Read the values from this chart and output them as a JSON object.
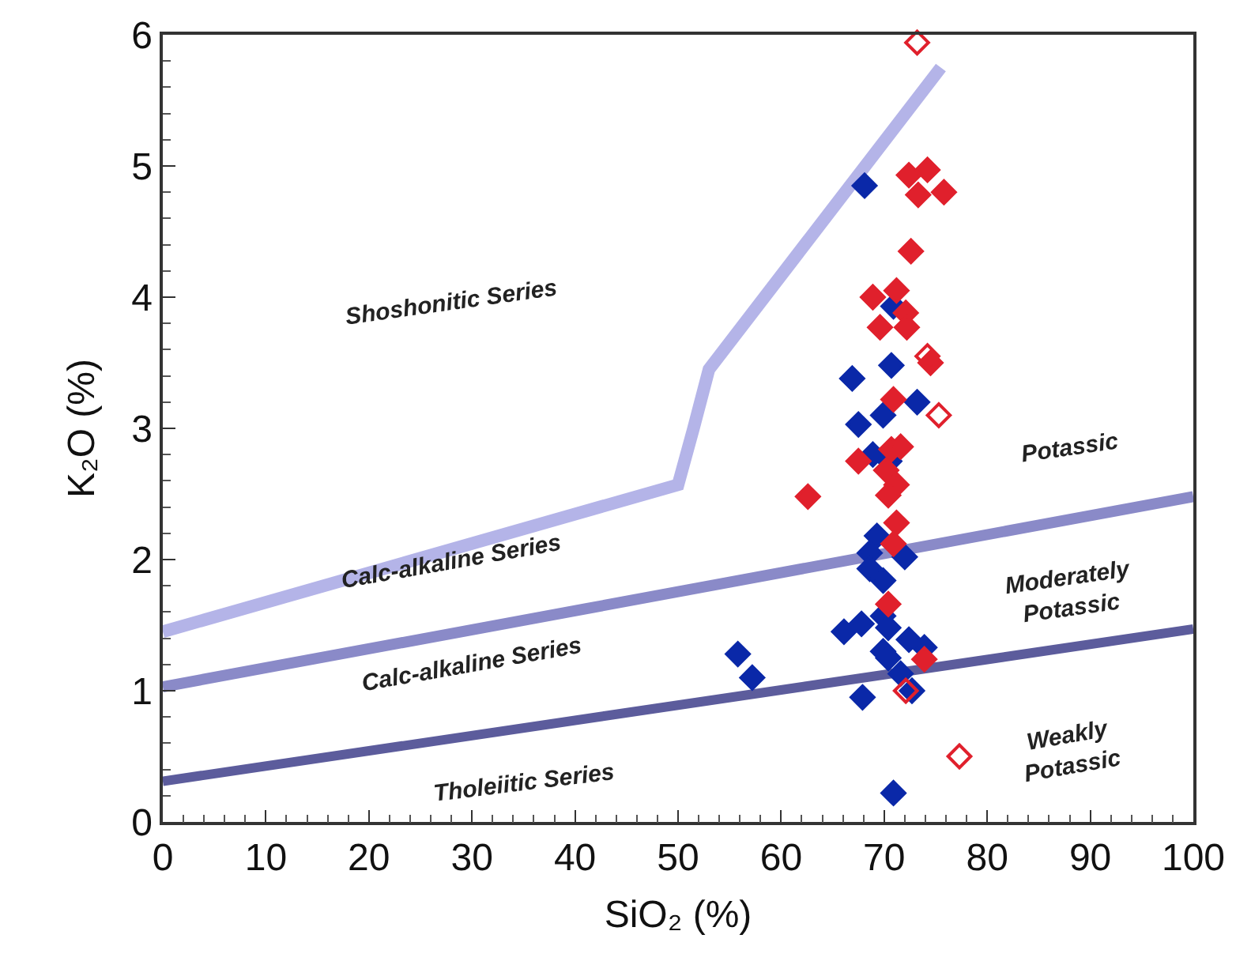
{
  "chart_data": {
    "type": "scatter",
    "xlabel": "SiO₂ (%)",
    "ylabel": "K₂O (%)",
    "xlim": [
      0,
      100
    ],
    "xticks": [
      0,
      10,
      20,
      30,
      40,
      50,
      60,
      70,
      80,
      90,
      100
    ],
    "ylim": [
      0,
      6
    ],
    "yticks": [
      0,
      1,
      2,
      3,
      4,
      5,
      6
    ],
    "grid": false,
    "series": [
      {
        "type": "line",
        "color": "#b4b4e8",
        "x": [
          0,
          50,
          51.5,
          53,
          75.5
        ],
        "values": [
          1.45,
          2.57,
          3.0,
          3.45,
          5.75
        ]
      },
      {
        "type": "line",
        "color": "#8a8ac8",
        "x": [
          0,
          100
        ],
        "values": [
          1.03,
          2.48
        ]
      },
      {
        "type": "line",
        "color": "#5c5c9c",
        "x": [
          0,
          100
        ],
        "values": [
          0.31,
          1.47
        ]
      },
      {
        "marker": "diamond",
        "color": "#0a28a8",
        "x": [
          67.5,
          69.9,
          73.2,
          68.9,
          70.5,
          69.3,
          68.6,
          72,
          68.6,
          69.9,
          66.1,
          67.8,
          69.9,
          70.4,
          72.4,
          73.9,
          69.9,
          70.4,
          71.6,
          72.7,
          67.9,
          70.9,
          70.9
        ],
        "values": [
          3.03,
          3.1,
          3.2,
          2.8,
          2.75,
          2.18,
          2.05,
          2.02,
          1.93,
          1.84,
          1.45,
          1.51,
          1.57,
          1.48,
          1.39,
          1.33,
          1.3,
          1.25,
          1.13,
          1.0,
          0.95,
          0.22,
          3.93
        ]
      },
      {
        "marker": "diamond",
        "color": "#0a28a8",
        "x": [
          68.1,
          66.9,
          70.7,
          55.8,
          57.2
        ],
        "values": [
          4.85,
          3.38,
          3.48,
          1.28,
          1.1
        ]
      },
      {
        "marker": "diamond",
        "color": "#e0202c",
        "x": [
          72.4,
          74.2,
          73.3,
          75.8,
          72.6,
          68.9,
          71.2,
          72.1,
          69.6,
          72.2,
          74.5,
          70.9,
          67.5,
          70.7,
          71.6,
          70.2,
          71.2,
          70.4,
          62.6,
          71.2,
          70.9,
          70.4,
          73.9
        ],
        "values": [
          4.93,
          4.97,
          4.78,
          4.8,
          4.35,
          4.0,
          4.05,
          3.88,
          3.77,
          3.77,
          3.5,
          3.22,
          2.75,
          2.84,
          2.86,
          2.68,
          2.57,
          2.49,
          2.48,
          2.28,
          2.12,
          1.66,
          1.24
        ]
      },
      {
        "marker": "diamond-open",
        "color": "#e0202c",
        "x": [
          73.2,
          74.2,
          75.3,
          72.1,
          77.3
        ],
        "values": [
          5.94,
          3.55,
          3.1,
          1.0,
          0.5
        ]
      }
    ],
    "annotations": [
      "Shoshonitic Series",
      "Calc-alkaline Series",
      "Calc-alkaline Series",
      "Tholeiitic Series",
      "Potassic",
      "Moderately\nPotassic",
      "Weakly\nPotassic"
    ]
  }
}
